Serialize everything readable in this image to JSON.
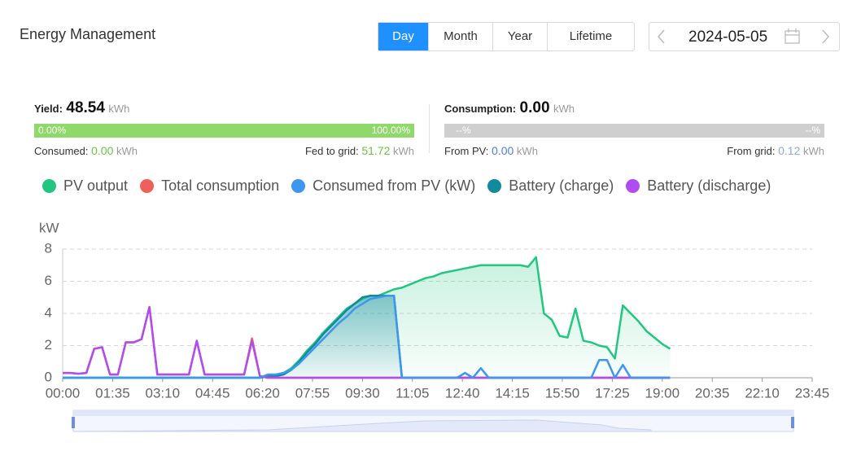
{
  "header": {
    "title": "Energy Management",
    "tabs": [
      "Day",
      "Month",
      "Year",
      "Lifetime"
    ],
    "date": "2024-05-05"
  },
  "yield": {
    "label": "Yield:",
    "value": "48.54",
    "unit": "kWh",
    "bar_left": "0.00%",
    "bar_right": "100.00%",
    "consumed_label": "Consumed:",
    "consumed_value": "0.00",
    "consumed_unit": "kWh",
    "fed_label": "Fed to grid:",
    "fed_value": "51.72",
    "fed_unit": "kWh"
  },
  "consumption": {
    "label": "Consumption:",
    "value": "0.00",
    "unit": "kWh",
    "bar_left": "--%",
    "bar_right": "--%",
    "pv_label": "From PV:",
    "pv_value": "0.00",
    "pv_unit": "kWh",
    "grid_label": "From grid:",
    "grid_value": "0.12",
    "grid_unit": "kWh"
  },
  "chart_data": {
    "type": "line",
    "y_label": "kW",
    "xlim": [
      0,
      1425
    ],
    "xticks": [
      {
        "value": 0,
        "label": "00:00"
      },
      {
        "value": 95,
        "label": "01:35"
      },
      {
        "value": 190,
        "label": "03:10"
      },
      {
        "value": 285,
        "label": "04:45"
      },
      {
        "value": 380,
        "label": "06:20"
      },
      {
        "value": 475,
        "label": "07:55"
      },
      {
        "value": 570,
        "label": "09:30"
      },
      {
        "value": 665,
        "label": "11:05"
      },
      {
        "value": 760,
        "label": "12:40"
      },
      {
        "value": 855,
        "label": "14:15"
      },
      {
        "value": 950,
        "label": "15:50"
      },
      {
        "value": 1045,
        "label": "17:25"
      },
      {
        "value": 1140,
        "label": "19:00"
      },
      {
        "value": 1235,
        "label": "20:35"
      },
      {
        "value": 1330,
        "label": "22:10"
      },
      {
        "value": 1425,
        "label": "23:45"
      }
    ],
    "ylim": [
      0,
      8
    ],
    "yticks": [
      0,
      2,
      4,
      6,
      8
    ],
    "grid": true,
    "x": [
      0,
      15,
      30,
      45,
      60,
      75,
      90,
      105,
      120,
      135,
      150,
      165,
      180,
      195,
      210,
      225,
      240,
      255,
      270,
      285,
      300,
      315,
      330,
      345,
      360,
      375,
      390,
      405,
      420,
      435,
      450,
      465,
      480,
      495,
      510,
      525,
      540,
      555,
      570,
      585,
      600,
      615,
      630,
      645,
      660,
      675,
      690,
      705,
      720,
      735,
      750,
      765,
      780,
      795,
      810,
      825,
      840,
      855,
      870,
      885,
      900,
      915,
      930,
      945,
      960,
      975,
      990,
      1005,
      1020,
      1035,
      1050,
      1065,
      1080,
      1095,
      1110,
      1125,
      1140,
      1155
    ],
    "series": [
      {
        "name": "PV output",
        "color": "#22c77f",
        "area": true,
        "values": [
          0,
          0,
          0,
          0,
          0,
          0,
          0,
          0,
          0,
          0,
          0,
          0,
          0,
          0,
          0,
          0,
          0,
          0,
          0,
          0,
          0,
          0,
          0,
          0,
          0,
          0,
          0.1,
          0.2,
          0.3,
          0.6,
          1.1,
          1.7,
          2.2,
          2.8,
          3.3,
          3.8,
          4.3,
          4.6,
          4.9,
          5.1,
          5.1,
          5.3,
          5.5,
          5.6,
          5.8,
          6.0,
          6.2,
          6.3,
          6.5,
          6.6,
          6.7,
          6.8,
          6.9,
          7.0,
          7.0,
          7.0,
          7.0,
          7.0,
          7.0,
          6.9,
          7.5,
          4.0,
          3.6,
          2.6,
          2.5,
          4.3,
          2.3,
          2.2,
          2.0,
          1.9,
          1.2,
          4.5,
          4.0,
          3.5,
          2.9,
          2.5,
          2.1,
          1.8
        ]
      },
      {
        "name": "Total consumption",
        "color": "#f0605a",
        "values": [
          0.3,
          0.3,
          0.25,
          0.3,
          1.8,
          1.9,
          0.2,
          0.2,
          2.2,
          2.2,
          2.4,
          4.4,
          0.2,
          0.2,
          0.2,
          0.2,
          0.2,
          2.3,
          0.2,
          0.2,
          0.2,
          0.2,
          0.2,
          0.2,
          2.45,
          0.1,
          0,
          0,
          0,
          0,
          0,
          0,
          0,
          0,
          0,
          0,
          0,
          0,
          0,
          0,
          0,
          0,
          0,
          0,
          0,
          0,
          0,
          0,
          0,
          0,
          0,
          0,
          0,
          0,
          0,
          0,
          0,
          0,
          0,
          0,
          0,
          0,
          0,
          0,
          0,
          0,
          0,
          0,
          0,
          0,
          0,
          0,
          0,
          0,
          0,
          0,
          0,
          0
        ]
      },
      {
        "name": "Consumed from PV (kW)",
        "color": "#3d96f0",
        "values": [
          0,
          0,
          0,
          0,
          0,
          0,
          0,
          0,
          0,
          0,
          0,
          0,
          0,
          0,
          0,
          0,
          0,
          0,
          0,
          0,
          0,
          0,
          0,
          0,
          0,
          0,
          0.2,
          0.2,
          0.3,
          0.5,
          0.9,
          1.4,
          1.9,
          2.4,
          2.9,
          3.4,
          3.8,
          4.3,
          4.6,
          4.9,
          5.0,
          5.1,
          5.1,
          0,
          0,
          0,
          0,
          0,
          0,
          0,
          0,
          0.3,
          0,
          0.6,
          0,
          0,
          0,
          0,
          0,
          0,
          0,
          0,
          0,
          0,
          0,
          0,
          0,
          0,
          1.1,
          1.1,
          0,
          0.8,
          0,
          0,
          0,
          0,
          0,
          0
        ]
      },
      {
        "name": "Battery (charge)",
        "color": "#128a9e",
        "area": true,
        "values": [
          0,
          0,
          0,
          0,
          0,
          0,
          0,
          0,
          0,
          0,
          0,
          0,
          0,
          0,
          0,
          0,
          0,
          0,
          0,
          0,
          0,
          0,
          0,
          0,
          0,
          0,
          0.1,
          0.1,
          0.2,
          0.5,
          1.0,
          1.6,
          2.1,
          2.7,
          3.2,
          3.7,
          4.2,
          4.6,
          5.0,
          5.1,
          5.1,
          5.1,
          5.1,
          0,
          0,
          0,
          0,
          0,
          0,
          0,
          0,
          0,
          0,
          0,
          0,
          0,
          0,
          0,
          0,
          0,
          0,
          0,
          0,
          0,
          0,
          0,
          0,
          0,
          0,
          0,
          0,
          0,
          0,
          0,
          0,
          0,
          0,
          0
        ]
      },
      {
        "name": "Battery (discharge)",
        "color": "#b04cf0",
        "values": [
          0.3,
          0.3,
          0.25,
          0.3,
          1.8,
          1.9,
          0.2,
          0.2,
          2.2,
          2.2,
          2.4,
          4.4,
          0.2,
          0.2,
          0.2,
          0.2,
          0.2,
          2.3,
          0.2,
          0.2,
          0.2,
          0.2,
          0.2,
          0.2,
          2.3,
          0.1,
          0,
          0,
          0,
          0,
          0,
          0,
          0,
          0,
          0,
          0,
          0,
          0,
          0,
          0,
          0,
          0,
          0,
          0,
          0,
          0,
          0,
          0,
          0,
          0,
          0,
          0,
          0,
          0,
          0,
          0,
          0,
          0,
          0,
          0,
          0,
          0,
          0,
          0,
          0,
          0,
          0,
          0,
          0,
          0,
          0,
          0,
          0,
          0,
          0,
          0,
          0,
          0
        ]
      }
    ]
  }
}
